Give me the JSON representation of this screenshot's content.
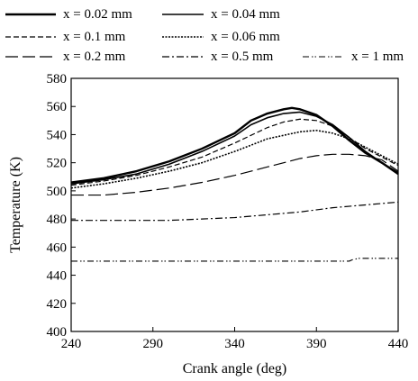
{
  "chart_data": {
    "type": "line",
    "xlabel": "Crank angle (deg)",
    "ylabel": "Temperature (K)",
    "xlim": [
      240,
      440
    ],
    "ylim": [
      400,
      580
    ],
    "xticks": [
      240,
      290,
      340,
      390,
      440
    ],
    "yticks": [
      400,
      420,
      440,
      460,
      480,
      500,
      520,
      540,
      560,
      580
    ],
    "grid": false,
    "legend_position": "top",
    "series": [
      {
        "name": "x = 0.02 mm",
        "style": "solid-bold",
        "x": [
          240,
          260,
          280,
          300,
          320,
          340,
          350,
          360,
          370,
          375,
          380,
          390,
          400,
          410,
          420,
          430,
          440
        ],
        "y": [
          506,
          509,
          514,
          521,
          530,
          541,
          550,
          555,
          558,
          559,
          558,
          554,
          546,
          536,
          527,
          520,
          512
        ]
      },
      {
        "name": "x = 0.04 mm",
        "style": "solid",
        "x": [
          240,
          260,
          280,
          300,
          320,
          340,
          350,
          360,
          370,
          380,
          390,
          400,
          410,
          420,
          430,
          440
        ],
        "y": [
          505,
          508,
          512,
          519,
          528,
          539,
          547,
          552,
          555,
          556,
          553,
          547,
          538,
          528,
          520,
          513
        ]
      },
      {
        "name": "x = 0.1 mm",
        "style": "dashed",
        "x": [
          240,
          260,
          280,
          300,
          320,
          340,
          360,
          370,
          380,
          390,
          400,
          410,
          420,
          430,
          440
        ],
        "y": [
          504,
          507,
          511,
          517,
          524,
          534,
          545,
          549,
          551,
          550,
          546,
          538,
          530,
          524,
          518
        ]
      },
      {
        "name": "x = 0.06 mm",
        "style": "dotted",
        "x": [
          240,
          260,
          280,
          300,
          320,
          340,
          360,
          380,
          390,
          400,
          410,
          420,
          430,
          440
        ],
        "y": [
          502,
          505,
          509,
          514,
          520,
          528,
          537,
          542,
          543,
          541,
          537,
          531,
          525,
          519
        ]
      },
      {
        "name": "x = 0.2 mm",
        "style": "long-dash",
        "x": [
          240,
          260,
          280,
          300,
          320,
          340,
          360,
          380,
          390,
          400,
          410,
          420,
          430,
          440
        ],
        "y": [
          497,
          497,
          499,
          502,
          506,
          511,
          517,
          523,
          525,
          526,
          526,
          525,
          522,
          514
        ]
      },
      {
        "name": "x = 0.5 mm",
        "style": "dash-dot",
        "x": [
          240,
          260,
          280,
          300,
          320,
          340,
          360,
          380,
          400,
          420,
          440
        ],
        "y": [
          479,
          479,
          479,
          479,
          480,
          481,
          483,
          485,
          488,
          490,
          492
        ]
      },
      {
        "name": "x = 1 mm",
        "style": "dash-dot-dot",
        "x": [
          240,
          280,
          320,
          360,
          400,
          410,
          412,
          416,
          420,
          440
        ],
        "y": [
          450,
          450,
          450,
          450,
          450,
          450,
          451,
          452,
          452,
          452
        ]
      }
    ]
  }
}
